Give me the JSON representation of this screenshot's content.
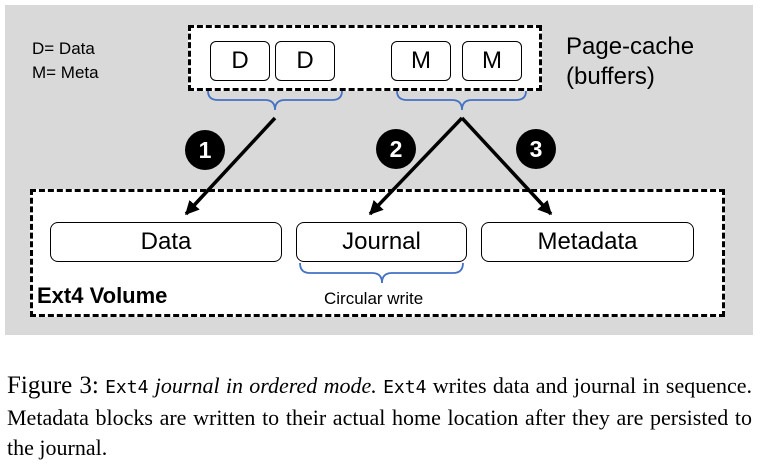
{
  "legend": {
    "data_line": "D= Data",
    "meta_line": "M= Meta"
  },
  "page_cache": {
    "buffers": [
      "D",
      "D",
      "M",
      "M"
    ],
    "label_line1": "Page-cache",
    "label_line2": "(buffers)"
  },
  "steps": [
    "1",
    "2",
    "3"
  ],
  "volume": {
    "label": "Ext4 Volume",
    "regions": [
      "Data",
      "Journal",
      "Metadata"
    ],
    "journal_note": "Circular write"
  },
  "caption": {
    "figure": "Figure 3:",
    "term1": "Ext4",
    "italic_phrase": "journal in ordered mode.",
    "term2": "Ext4",
    "rest": "writes data and journal in sequence. Metadata blocks are written to their actual home location after they are persisted to the journal."
  },
  "colors": {
    "panel_bg": "#d9d9d9",
    "brace": "#4472c4",
    "ink": "#000000"
  }
}
